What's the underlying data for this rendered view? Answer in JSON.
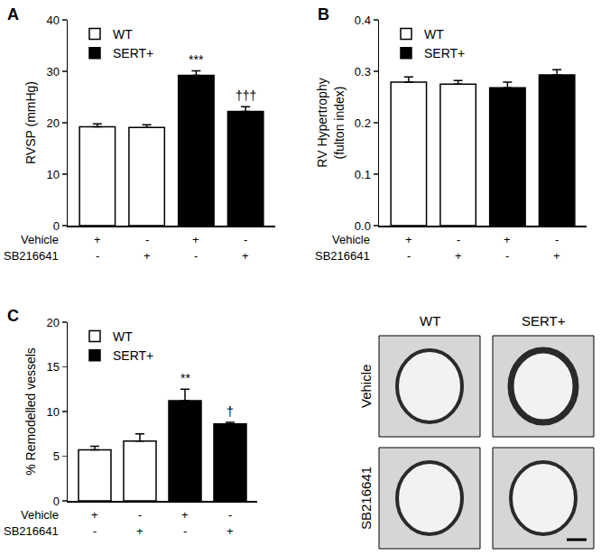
{
  "chart_data": [
    {
      "type": "bar",
      "title": "A",
      "ylabel": "RVSP (mmHg)",
      "categories": [
        null,
        null,
        null,
        null
      ],
      "series": [
        {
          "name": "WT",
          "color": "#ffffff",
          "values": [
            19.2,
            19.1,
            null,
            null
          ],
          "errors": [
            0.6,
            0.5,
            null,
            null
          ]
        },
        {
          "name": "SERT+",
          "color": "#000000",
          "values": [
            null,
            null,
            29.2,
            22.2
          ],
          "errors": [
            null,
            null,
            0.9,
            0.9
          ]
        }
      ],
      "treatments": [
        {
          "label": "Vehicle",
          "marks": [
            "+",
            "-",
            "+",
            "-"
          ]
        },
        {
          "label": "SB216641",
          "marks": [
            "-",
            "+",
            "-",
            "+"
          ]
        }
      ],
      "significance": [
        null,
        null,
        "***",
        "†††"
      ],
      "ylim": [
        0,
        40
      ],
      "yticks": [
        0,
        10,
        20,
        30,
        40
      ],
      "legend": "upper left"
    },
    {
      "type": "bar",
      "title": "B",
      "ylabel": "RV Hypertrophy\n(fulton index)",
      "categories": [
        null,
        null,
        null,
        null
      ],
      "series": [
        {
          "name": "WT",
          "color": "#ffffff",
          "values": [
            0.279,
            0.275,
            null,
            null
          ],
          "errors": [
            0.01,
            0.007,
            null,
            null
          ]
        },
        {
          "name": "SERT+",
          "color": "#000000",
          "values": [
            null,
            null,
            0.268,
            0.293
          ],
          "errors": [
            null,
            null,
            0.011,
            0.01
          ]
        }
      ],
      "treatments": [
        {
          "label": "Vehicle",
          "marks": [
            "+",
            "-",
            "+",
            "-"
          ]
        },
        {
          "label": "SB216641",
          "marks": [
            "-",
            "+",
            "-",
            "+"
          ]
        }
      ],
      "ylim": [
        0,
        0.4
      ],
      "yticks": [
        {
          "value": 0,
          "label": "0.0"
        },
        0.1,
        0.2,
        0.3,
        0.4
      ],
      "legend": "upper left"
    },
    {
      "type": "bar",
      "title": "C",
      "ylabel": "% Remodelled vessels",
      "categories": [
        null,
        null,
        null,
        null
      ],
      "series": [
        {
          "name": "WT",
          "color": "#ffffff",
          "values": [
            5.7,
            6.7,
            null,
            null
          ],
          "errors": [
            0.4,
            0.8,
            null,
            null
          ]
        },
        {
          "name": "SERT+",
          "color": "#000000",
          "values": [
            null,
            null,
            11.2,
            8.6
          ],
          "errors": [
            null,
            null,
            1.3,
            0.2
          ]
        }
      ],
      "treatments": [
        {
          "label": "Vehicle",
          "marks": [
            "+",
            "-",
            "+",
            "-"
          ]
        },
        {
          "label": "SB216641",
          "marks": [
            "-",
            "+",
            "-",
            "+"
          ]
        }
      ],
      "significance": [
        null,
        null,
        "**",
        "†"
      ],
      "ylim": [
        0,
        20
      ],
      "yticks": [
        0,
        5,
        10,
        15,
        20
      ],
      "legend": "upper left"
    }
  ],
  "micrographs": {
    "columns": [
      "WT",
      "SERT+"
    ],
    "rows": [
      "Vehicle",
      "SB216641"
    ]
  }
}
